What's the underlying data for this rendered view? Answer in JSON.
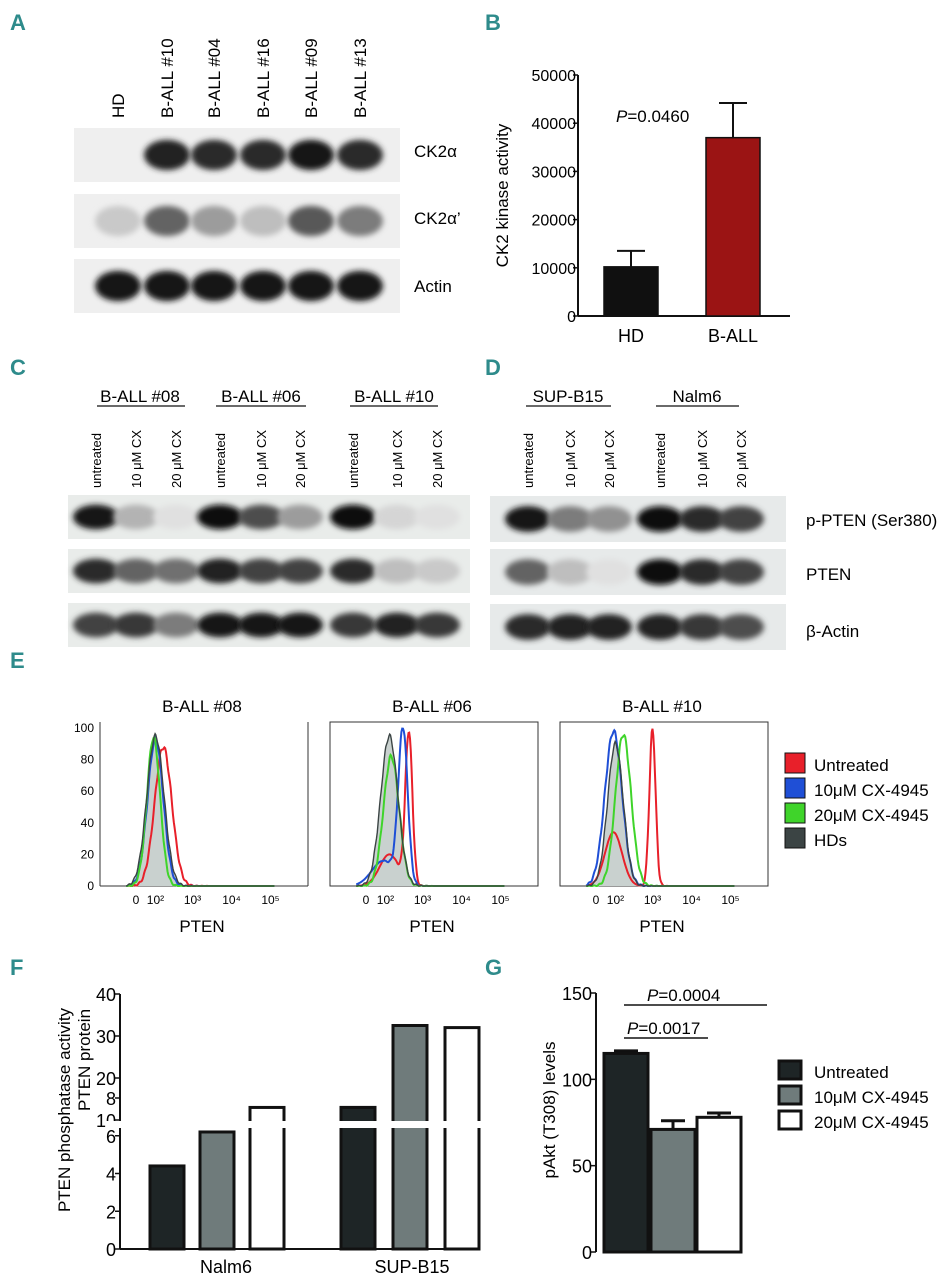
{
  "panels": {
    "A": {
      "letter": "A",
      "lanes": [
        "HD",
        "B-ALL #10",
        "B-ALL #04",
        "B-ALL #16",
        "B-ALL #09",
        "B-ALL #13"
      ],
      "rows": [
        "CK2α",
        "CK2α’",
        "Actin"
      ],
      "intensity": [
        [
          0.0,
          0.9,
          0.85,
          0.85,
          0.95,
          0.85
        ],
        [
          0.15,
          0.6,
          0.35,
          0.2,
          0.65,
          0.5
        ],
        [
          0.95,
          0.95,
          0.95,
          0.95,
          0.95,
          0.95
        ]
      ]
    },
    "B": {
      "letter": "B",
      "pvalue": "=0.0460",
      "pvalue_italic": "P"
    },
    "C": {
      "letter": "C",
      "groups": [
        "B-ALL #08",
        "B-ALL #06",
        "B-ALL #10"
      ],
      "treatments": [
        "untreated",
        "10 μM CX",
        "20 μM CX"
      ],
      "intensity": [
        [
          0.95,
          0.25,
          0.05,
          0.98,
          0.7,
          0.35,
          0.98,
          0.1,
          0.05
        ],
        [
          0.85,
          0.6,
          0.55,
          0.9,
          0.75,
          0.75,
          0.85,
          0.2,
          0.15
        ],
        [
          0.75,
          0.8,
          0.5,
          0.95,
          0.95,
          0.95,
          0.8,
          0.9,
          0.8
        ]
      ]
    },
    "D": {
      "letter": "D",
      "groups": [
        "SUP-B15",
        "Nalm6"
      ],
      "treatments": [
        "untreated",
        "10 μM CX",
        "20 μM CX"
      ],
      "row_labels": [
        "p-PTEN (Ser380)",
        "PTEN",
        "β-Actin"
      ],
      "intensity": [
        [
          0.95,
          0.5,
          0.4,
          1.0,
          0.85,
          0.75
        ],
        [
          0.6,
          0.2,
          0.05,
          1.0,
          0.85,
          0.75
        ],
        [
          0.85,
          0.9,
          0.9,
          0.9,
          0.8,
          0.7
        ]
      ]
    },
    "E": {
      "letter": "E",
      "plot_titles": [
        "B-ALL #08",
        "B-ALL #06",
        "B-ALL #10"
      ],
      "y_ticks": [
        "100",
        "80",
        "60",
        "40",
        "20",
        "0"
      ],
      "x_ticks": [
        "0",
        "10²",
        "10³",
        "10⁴",
        "10⁵"
      ],
      "x_label": "PTEN",
      "legend": [
        {
          "label": "Untreated",
          "color": "#e8202a"
        },
        {
          "label": "10μM CX-4945",
          "color": "#1f4fd6"
        },
        {
          "label": "20μM CX-4945",
          "color": "#3fd42a"
        },
        {
          "label": "HDs",
          "color": "#3b4444"
        }
      ]
    },
    "F": {
      "letter": "F",
      "legend": []
    },
    "G": {
      "letter": "G",
      "p1": "=0.0004",
      "p2": "=0.0017",
      "p_italic": "P",
      "legend": [
        {
          "label": "Untreated",
          "color": "#1e2526"
        },
        {
          "label": "10μM CX-4945",
          "color": "#6f7b7b"
        },
        {
          "label": "20μM CX-4945",
          "color": "#ffffff"
        }
      ]
    }
  },
  "chart_data": [
    {
      "id": "B",
      "type": "bar",
      "categories": [
        "HD",
        "B-ALL"
      ],
      "values": [
        10200,
        37000
      ],
      "errors": [
        3300,
        7200
      ],
      "colors": [
        "#101010",
        "#9b1414"
      ],
      "ylabel": "CK2 kinase activity",
      "ylim": [
        0,
        50000
      ],
      "yticks": [
        "0",
        "10000",
        "20000",
        "30000",
        "40000",
        "50000"
      ],
      "annotation": "P=0.0460"
    },
    {
      "id": "F",
      "type": "bar",
      "categories": [
        "Nalm6",
        "SUP-B15"
      ],
      "series": [
        {
          "name": "Untreated",
          "values": [
            4.4,
            13
          ],
          "color": "#1e2526"
        },
        {
          "name": "10μM CX-4945",
          "values": [
            6.2,
            32.5
          ],
          "color": "#6f7b7b"
        },
        {
          "name": "20μM CX-4945",
          "values": [
            7.5,
            32
          ],
          "color": "#ffffff"
        }
      ],
      "ylabel_line1": "PTEN phosphatase activity",
      "ylabel_line2": "PTEN protein",
      "ylim_lower": [
        0,
        8
      ],
      "ylim_upper": [
        10,
        40
      ],
      "yticks_lower": [
        "0",
        "2",
        "4",
        "6",
        "8"
      ],
      "yticks_upper": [
        "10",
        "20",
        "30",
        "40"
      ]
    },
    {
      "id": "G",
      "type": "bar",
      "categories": [
        "Untreated",
        "10μM CX-4945",
        "20μM CX-4945"
      ],
      "values": [
        115,
        71,
        78
      ],
      "errors": [
        1.5,
        5,
        2.5
      ],
      "colors": [
        "#1e2526",
        "#6f7b7b",
        "#ffffff"
      ],
      "ylabel": "pAkt (T308) levels",
      "ylim": [
        0,
        150
      ],
      "yticks": [
        "0",
        "50",
        "100",
        "150"
      ],
      "annotations": [
        "P=0.0004",
        "P=0.0017"
      ]
    }
  ]
}
